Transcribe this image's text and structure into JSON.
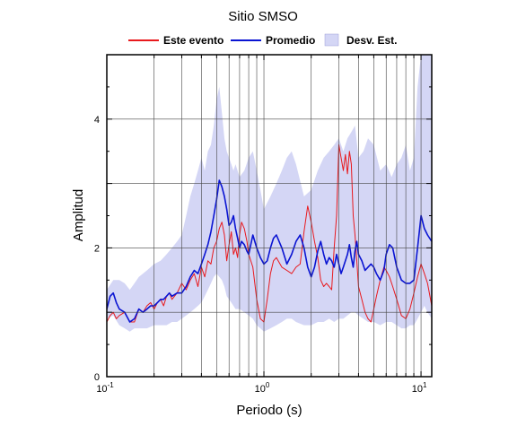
{
  "chart_data": {
    "type": "line",
    "title": "Sitio SMSO",
    "xlabel": "Periodo (s)",
    "ylabel": "Amplitud",
    "x_scale": "log",
    "xlim": [
      0.1,
      11.7
    ],
    "ylim": [
      0,
      5
    ],
    "grid": true,
    "legend_position": "top",
    "x_ticks": [
      {
        "value": 0.1,
        "base": "10",
        "exp": "-1"
      },
      {
        "value": 1,
        "base": "10",
        "exp": "0"
      },
      {
        "value": 10,
        "base": "10",
        "exp": "1"
      }
    ],
    "y_ticks": [
      {
        "value": 0,
        "label": "0"
      },
      {
        "value": 2,
        "label": "2"
      },
      {
        "value": 4,
        "label": "4"
      }
    ],
    "y_gridlines": [
      1,
      2,
      3,
      4,
      5
    ],
    "colors": {
      "event": "#e8191d",
      "mean": "#0a14d2",
      "std": "#d4d6f5"
    },
    "series": [
      {
        "name": "Este evento",
        "color": "#e8191d",
        "x": [
          0.1,
          0.105,
          0.11,
          0.115,
          0.12,
          0.13,
          0.14,
          0.15,
          0.16,
          0.17,
          0.18,
          0.19,
          0.2,
          0.21,
          0.22,
          0.23,
          0.24,
          0.25,
          0.26,
          0.28,
          0.3,
          0.32,
          0.34,
          0.36,
          0.38,
          0.4,
          0.42,
          0.44,
          0.46,
          0.48,
          0.5,
          0.52,
          0.54,
          0.56,
          0.58,
          0.6,
          0.62,
          0.64,
          0.66,
          0.68,
          0.7,
          0.72,
          0.75,
          0.78,
          0.8,
          0.85,
          0.9,
          0.95,
          1.0,
          1.05,
          1.1,
          1.15,
          1.2,
          1.3,
          1.4,
          1.5,
          1.6,
          1.7,
          1.8,
          1.9,
          2.0,
          2.1,
          2.2,
          2.3,
          2.4,
          2.5,
          2.6,
          2.7,
          2.8,
          2.9,
          3.0,
          3.1,
          3.2,
          3.3,
          3.4,
          3.5,
          3.6,
          3.7,
          3.8,
          3.9,
          4.0,
          4.2,
          4.4,
          4.6,
          4.8,
          5.0,
          5.2,
          5.5,
          5.8,
          6.0,
          6.3,
          6.6,
          7.0,
          7.5,
          8.0,
          8.5,
          9.0,
          9.5,
          10.0,
          10.5,
          11.0,
          11.7
        ],
        "values": [
          0.85,
          0.95,
          1.0,
          0.9,
          0.95,
          1.0,
          0.85,
          0.85,
          1.05,
          1.0,
          1.1,
          1.15,
          1.05,
          1.15,
          1.2,
          1.1,
          1.25,
          1.3,
          1.2,
          1.3,
          1.45,
          1.35,
          1.5,
          1.6,
          1.4,
          1.7,
          1.55,
          1.8,
          1.75,
          2.0,
          2.1,
          2.3,
          2.4,
          2.2,
          1.8,
          2.05,
          2.25,
          1.9,
          2.0,
          1.85,
          2.2,
          2.4,
          2.3,
          2.1,
          1.9,
          1.7,
          1.2,
          0.9,
          0.85,
          1.2,
          1.6,
          1.8,
          1.85,
          1.7,
          1.65,
          1.6,
          1.7,
          1.75,
          2.25,
          2.65,
          2.4,
          2.1,
          1.85,
          1.5,
          1.4,
          1.45,
          1.4,
          1.35,
          2.0,
          2.5,
          3.6,
          3.4,
          3.2,
          3.45,
          3.15,
          3.5,
          3.3,
          2.5,
          2.2,
          1.8,
          1.4,
          1.2,
          1.0,
          0.9,
          0.85,
          1.05,
          1.25,
          1.5,
          1.7,
          1.65,
          1.55,
          1.4,
          1.2,
          0.95,
          0.9,
          1.05,
          1.3,
          1.55,
          1.75,
          1.6,
          1.45,
          1.1
        ]
      },
      {
        "name": "Promedio",
        "color": "#0a14d2",
        "x": [
          0.1,
          0.105,
          0.11,
          0.115,
          0.12,
          0.13,
          0.14,
          0.15,
          0.16,
          0.17,
          0.18,
          0.19,
          0.2,
          0.21,
          0.22,
          0.23,
          0.24,
          0.25,
          0.26,
          0.28,
          0.3,
          0.32,
          0.34,
          0.36,
          0.38,
          0.4,
          0.42,
          0.44,
          0.46,
          0.48,
          0.5,
          0.52,
          0.54,
          0.56,
          0.58,
          0.6,
          0.62,
          0.64,
          0.66,
          0.68,
          0.7,
          0.72,
          0.75,
          0.78,
          0.8,
          0.85,
          0.9,
          0.95,
          1.0,
          1.05,
          1.1,
          1.15,
          1.2,
          1.3,
          1.4,
          1.5,
          1.6,
          1.7,
          1.8,
          1.9,
          2.0,
          2.1,
          2.2,
          2.3,
          2.4,
          2.5,
          2.6,
          2.7,
          2.8,
          2.9,
          3.0,
          3.1,
          3.2,
          3.3,
          3.4,
          3.5,
          3.6,
          3.7,
          3.8,
          3.9,
          4.0,
          4.2,
          4.4,
          4.6,
          4.8,
          5.0,
          5.2,
          5.5,
          5.8,
          6.0,
          6.3,
          6.6,
          7.0,
          7.5,
          8.0,
          8.5,
          9.0,
          9.5,
          10.0,
          10.5,
          11.0,
          11.7
        ],
        "values": [
          1.05,
          1.25,
          1.3,
          1.15,
          1.05,
          1.0,
          0.85,
          0.9,
          1.05,
          1.0,
          1.05,
          1.1,
          1.1,
          1.15,
          1.2,
          1.2,
          1.25,
          1.3,
          1.25,
          1.3,
          1.3,
          1.4,
          1.55,
          1.65,
          1.6,
          1.75,
          1.9,
          2.05,
          2.25,
          2.5,
          2.75,
          3.05,
          2.95,
          2.8,
          2.6,
          2.35,
          2.4,
          2.5,
          2.3,
          2.15,
          2.0,
          2.1,
          2.05,
          1.95,
          1.9,
          2.2,
          2.0,
          1.85,
          1.75,
          1.8,
          2.0,
          2.15,
          2.2,
          2.0,
          1.75,
          1.9,
          2.1,
          2.2,
          2.0,
          1.7,
          1.55,
          1.7,
          1.95,
          2.1,
          1.9,
          1.75,
          1.85,
          1.8,
          1.7,
          1.9,
          1.75,
          1.6,
          1.7,
          1.8,
          1.9,
          2.05,
          1.85,
          1.7,
          1.95,
          2.1,
          1.9,
          1.8,
          1.65,
          1.7,
          1.75,
          1.7,
          1.6,
          1.5,
          1.65,
          1.9,
          2.05,
          2.0,
          1.7,
          1.5,
          1.45,
          1.45,
          1.5,
          2.0,
          2.5,
          2.3,
          2.2,
          2.1
        ]
      }
    ],
    "band": {
      "name": "Desv. Est.",
      "color": "#d4d6f5",
      "x": [
        0.1,
        0.11,
        0.12,
        0.13,
        0.14,
        0.15,
        0.16,
        0.18,
        0.2,
        0.22,
        0.24,
        0.26,
        0.28,
        0.3,
        0.32,
        0.34,
        0.36,
        0.38,
        0.4,
        0.42,
        0.44,
        0.46,
        0.48,
        0.5,
        0.52,
        0.54,
        0.56,
        0.58,
        0.6,
        0.62,
        0.64,
        0.66,
        0.7,
        0.75,
        0.8,
        0.85,
        0.9,
        0.95,
        1.0,
        1.1,
        1.2,
        1.3,
        1.4,
        1.5,
        1.6,
        1.8,
        2.0,
        2.2,
        2.4,
        2.6,
        2.8,
        3.0,
        3.2,
        3.4,
        3.6,
        3.8,
        4.0,
        4.3,
        4.6,
        5.0,
        5.5,
        6.0,
        6.5,
        7.0,
        7.5,
        8.0,
        8.5,
        9.0,
        9.5,
        10.0,
        10.5,
        11.0,
        11.7
      ],
      "upper": [
        1.35,
        1.5,
        1.5,
        1.45,
        1.35,
        1.45,
        1.55,
        1.65,
        1.75,
        1.8,
        1.9,
        2.0,
        2.1,
        2.2,
        2.5,
        2.8,
        3.0,
        3.2,
        3.4,
        3.2,
        3.5,
        3.6,
        3.9,
        4.3,
        4.5,
        4.1,
        3.7,
        3.5,
        3.4,
        3.3,
        3.2,
        3.3,
        3.1,
        3.2,
        3.4,
        3.5,
        3.2,
        2.9,
        2.6,
        2.8,
        3.0,
        3.2,
        3.4,
        3.5,
        3.3,
        2.8,
        2.9,
        3.2,
        3.4,
        3.5,
        3.6,
        3.7,
        3.5,
        3.7,
        3.8,
        3.9,
        3.4,
        3.5,
        3.7,
        3.6,
        3.2,
        3.3,
        3.1,
        3.3,
        3.4,
        3.6,
        3.2,
        3.4,
        4.5,
        5.0,
        5.0,
        5.0,
        5.0
      ],
      "lower": [
        0.9,
        0.95,
        0.8,
        0.75,
        0.7,
        0.75,
        0.75,
        0.75,
        0.8,
        0.8,
        0.8,
        0.85,
        0.85,
        0.9,
        0.95,
        1.0,
        1.05,
        1.1,
        1.15,
        1.25,
        1.35,
        1.45,
        1.55,
        1.6,
        1.55,
        1.5,
        1.4,
        1.25,
        1.2,
        1.15,
        1.1,
        1.05,
        1.05,
        1.0,
        0.95,
        0.9,
        0.8,
        0.75,
        0.7,
        0.75,
        0.8,
        0.85,
        0.9,
        0.9,
        0.85,
        0.8,
        0.8,
        0.85,
        0.85,
        0.9,
        0.85,
        0.9,
        0.9,
        0.95,
        1.0,
        1.0,
        0.95,
        0.9,
        0.85,
        0.85,
        0.8,
        0.85,
        0.85,
        0.8,
        0.75,
        0.75,
        0.8,
        0.8,
        0.9,
        1.0,
        1.1,
        1.0,
        0.9
      ]
    }
  }
}
